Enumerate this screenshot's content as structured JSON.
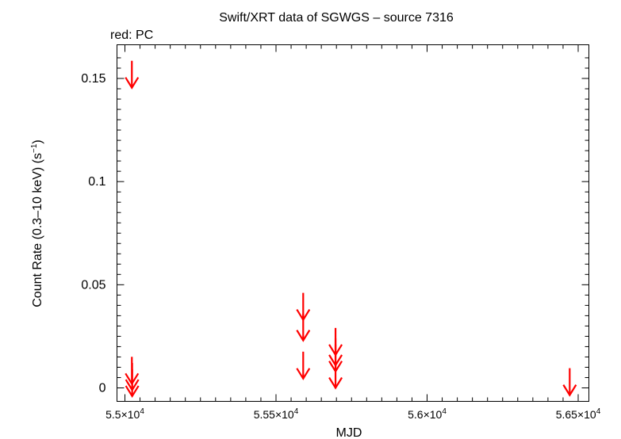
{
  "chart_data": {
    "type": "scatter",
    "title": "Swift/XRT data of SGWGS – source 7316",
    "subtitle": "red: PC",
    "xlabel": "MJD",
    "ylabel": "Count Rate (0.3–10 keV) (s",
    "ylabel_sup": "−1",
    "ylabel_tail": ")",
    "xlim": [
      54990,
      56550
    ],
    "ylim": [
      -0.005,
      0.165
    ],
    "x_ticks": [
      {
        "value": 55000,
        "mantissa": "5.5×10",
        "exp": "4"
      },
      {
        "value": 55500,
        "mantissa": "5.55×10",
        "exp": "4"
      },
      {
        "value": 56000,
        "mantissa": "5.6×10",
        "exp": "4"
      },
      {
        "value": 56500,
        "mantissa": "5.65×10",
        "exp": "4"
      }
    ],
    "y_ticks": [
      {
        "value": 0,
        "label": "0"
      },
      {
        "value": 0.05,
        "label": "0.05"
      },
      {
        "value": 0.1,
        "label": "0.1"
      },
      {
        "value": 0.15,
        "label": "0.15"
      }
    ],
    "series": [
      {
        "name": "PC",
        "color": "#ff0000",
        "marker": "upper-limit-arrow",
        "points": [
          {
            "x": 55023,
            "y": 0.1455
          },
          {
            "x": 55023,
            "y": 0.002
          },
          {
            "x": 55024,
            "y": -0.001
          },
          {
            "x": 55024,
            "y": -0.004
          },
          {
            "x": 55590,
            "y": 0.033
          },
          {
            "x": 55590,
            "y": 0.023
          },
          {
            "x": 55590,
            "y": 0.0045
          },
          {
            "x": 55697,
            "y": 0.016
          },
          {
            "x": 55697,
            "y": 0.011
          },
          {
            "x": 55697,
            "y": 0.008
          },
          {
            "x": 55697,
            "y": 0.0
          },
          {
            "x": 56472,
            "y": -0.0035
          }
        ]
      }
    ],
    "grid": false,
    "legend": "none"
  }
}
